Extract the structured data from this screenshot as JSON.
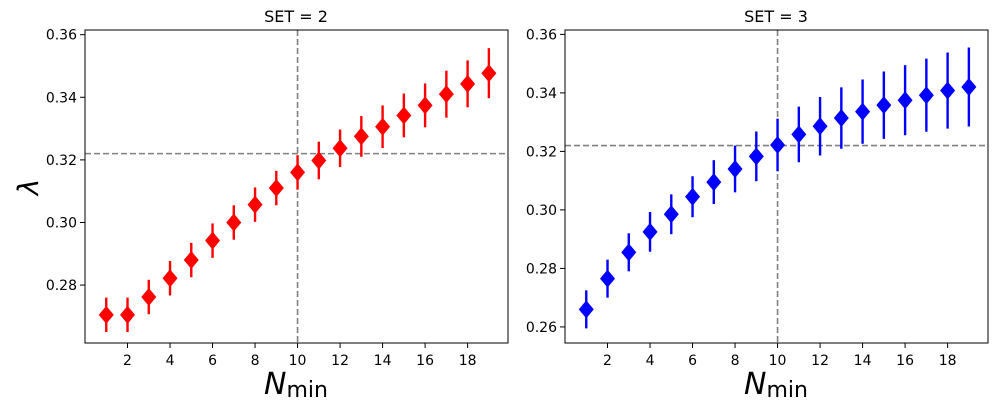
{
  "chart_data": [
    {
      "type": "scatter",
      "title": "SET = 2",
      "xlabel_main": "N",
      "xlabel_sub": "min",
      "ylabel": "λ",
      "xlim": [
        0.0,
        19.9
      ],
      "ylim": [
        0.2615,
        0.3615
      ],
      "x_ticks": [
        2,
        4,
        6,
        8,
        10,
        12,
        14,
        16,
        18
      ],
      "y_ticks": [
        0.28,
        0.3,
        0.32,
        0.34,
        0.36
      ],
      "x_tick_labels": [
        "2",
        "4",
        "6",
        "8",
        "10",
        "12",
        "14",
        "16",
        "18"
      ],
      "y_tick_labels": [
        "0.28",
        "0.30",
        "0.32",
        "0.34",
        "0.36"
      ],
      "color": "#ff0000",
      "marker": "diamond",
      "ref_vline": 10,
      "ref_hline": 0.322,
      "x": [
        1,
        2,
        3,
        4,
        5,
        6,
        7,
        8,
        9,
        10,
        11,
        12,
        13,
        14,
        15,
        16,
        17,
        18,
        19
      ],
      "y": [
        0.2705,
        0.2705,
        0.2762,
        0.2822,
        0.288,
        0.2942,
        0.3,
        0.3057,
        0.311,
        0.316,
        0.3198,
        0.3237,
        0.3275,
        0.3306,
        0.3342,
        0.3374,
        0.341,
        0.3443,
        0.3477
      ],
      "yerr": [
        0.0055,
        0.0055,
        0.0055,
        0.0055,
        0.0055,
        0.0055,
        0.0055,
        0.0055,
        0.0055,
        0.0055,
        0.006,
        0.006,
        0.0065,
        0.0068,
        0.007,
        0.007,
        0.0075,
        0.0075,
        0.008
      ]
    },
    {
      "type": "scatter",
      "title": "SET = 3",
      "xlabel_main": "N",
      "xlabel_sub": "min",
      "ylabel": "",
      "xlim": [
        0.0,
        19.9
      ],
      "ylim": [
        0.2545,
        0.3615
      ],
      "x_ticks": [
        2,
        4,
        6,
        8,
        10,
        12,
        14,
        16,
        18
      ],
      "y_ticks": [
        0.26,
        0.28,
        0.3,
        0.32,
        0.34,
        0.36
      ],
      "x_tick_labels": [
        "2",
        "4",
        "6",
        "8",
        "10",
        "12",
        "14",
        "16",
        "18"
      ],
      "y_tick_labels": [
        "0.26",
        "0.28",
        "0.30",
        "0.32",
        "0.34",
        "0.36"
      ],
      "color": "#0000ff",
      "marker": "diamond",
      "ref_vline": 10,
      "ref_hline": 0.322,
      "x": [
        1,
        2,
        3,
        4,
        5,
        6,
        7,
        8,
        9,
        10,
        11,
        12,
        13,
        14,
        15,
        16,
        17,
        18,
        19
      ],
      "y": [
        0.266,
        0.2765,
        0.2855,
        0.2925,
        0.2985,
        0.3045,
        0.3095,
        0.314,
        0.3183,
        0.3222,
        0.3258,
        0.3286,
        0.3314,
        0.3336,
        0.3358,
        0.3375,
        0.3392,
        0.3408,
        0.342
      ],
      "yerr": [
        0.0065,
        0.0065,
        0.0065,
        0.0068,
        0.0068,
        0.007,
        0.0075,
        0.008,
        0.0085,
        0.009,
        0.0095,
        0.01,
        0.0105,
        0.011,
        0.0115,
        0.012,
        0.0125,
        0.013,
        0.0135
      ]
    }
  ]
}
